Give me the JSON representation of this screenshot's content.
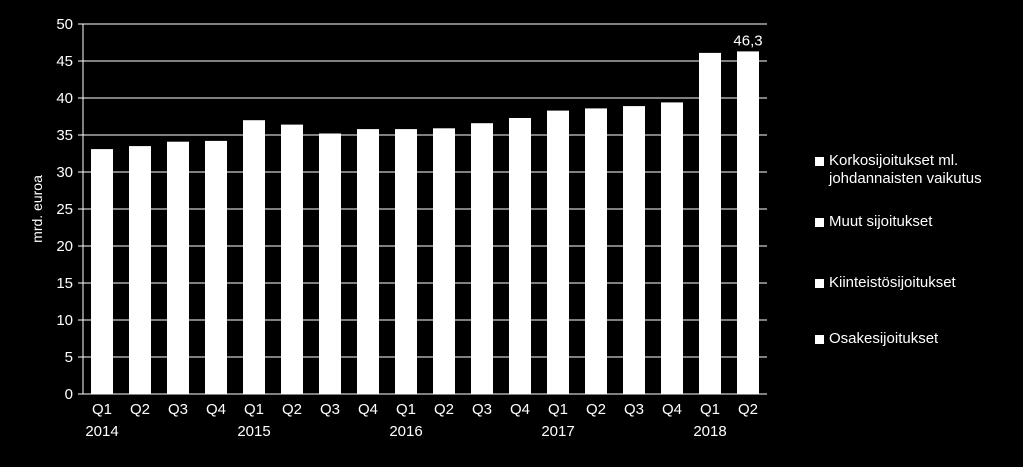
{
  "chart_data": {
    "type": "bar",
    "title": "",
    "ylabel": "mrd. euroa",
    "ylim": [
      0,
      50
    ],
    "yticks": [
      0,
      5,
      10,
      15,
      20,
      25,
      30,
      35,
      40,
      45,
      50
    ],
    "grid": true,
    "legend_position": "right",
    "colors": {
      "background": "#000000",
      "bars": "#ffffff",
      "text": "#ffffff",
      "grid": "#ffffff"
    },
    "categories": [
      "Q1",
      "Q2",
      "Q3",
      "Q4",
      "Q1",
      "Q2",
      "Q3",
      "Q4",
      "Q1",
      "Q2",
      "Q3",
      "Q4",
      "Q1",
      "Q2",
      "Q3",
      "Q4",
      "Q1",
      "Q2"
    ],
    "years": [
      "2014",
      "2015",
      "2016",
      "2017",
      "2018"
    ],
    "values": [
      33.1,
      33.5,
      34.1,
      34.2,
      37.0,
      36.4,
      35.2,
      35.8,
      35.8,
      35.9,
      36.6,
      37.3,
      38.3,
      38.6,
      38.9,
      39.4,
      46.1,
      46.3
    ],
    "data_labels": [
      {
        "index": 17,
        "text": "46,3"
      }
    ],
    "legend": [
      {
        "line1": "Korkosijoitukset ml.",
        "line2": "johdannaisten vaikutus"
      },
      {
        "line1": "Muut sijoitukset",
        "line2": ""
      },
      {
        "line1": "Kiinteistösijoitukset",
        "line2": ""
      },
      {
        "line1": "Osakesijoitukset",
        "line2": ""
      }
    ]
  }
}
